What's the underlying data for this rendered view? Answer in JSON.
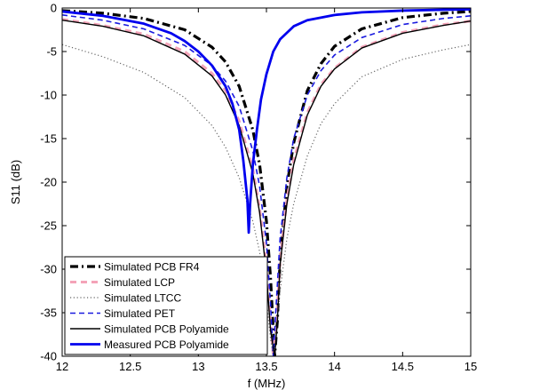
{
  "chart_data": {
    "type": "line",
    "xlabel": "f (MHz)",
    "ylabel": "S11 (dB)",
    "xlim": [
      12,
      15
    ],
    "ylim": [
      -40,
      0
    ],
    "x_ticks": [
      "12",
      "12.5",
      "13",
      "13.5",
      "14",
      "14.5",
      "15"
    ],
    "y_ticks": [
      "0",
      "-5",
      "-10",
      "-15",
      "-20",
      "-25",
      "-30",
      "-35",
      "-40"
    ],
    "grid": false,
    "legend_position": "bottom-left",
    "series": [
      {
        "name": "Simulated PCB FR4",
        "color": "#000000",
        "style": "dashdot-thick",
        "x": [
          12.0,
          12.3,
          12.6,
          12.9,
          13.1,
          13.2,
          13.3,
          13.4,
          13.45,
          13.5,
          13.53,
          13.56,
          13.58,
          13.6,
          13.65,
          13.7,
          13.8,
          13.9,
          14.0,
          14.2,
          14.5,
          14.8,
          15.0
        ],
        "y": [
          -0.3,
          -0.6,
          -1.2,
          -2.5,
          -4.5,
          -6.2,
          -9.0,
          -14.0,
          -18.0,
          -24.5,
          -31.0,
          -40.0,
          -36.0,
          -29.0,
          -20.5,
          -15.5,
          -9.5,
          -6.4,
          -4.4,
          -2.4,
          -1.1,
          -0.6,
          -0.4
        ]
      },
      {
        "name": "Simulated LCP",
        "color": "#f4a3b8",
        "style": "dashed-thick",
        "x": [
          12.0,
          12.3,
          12.6,
          12.9,
          13.1,
          13.2,
          13.3,
          13.4,
          13.45,
          13.5,
          13.53,
          13.55,
          13.57,
          13.6,
          13.65,
          13.7,
          13.8,
          13.9,
          14.0,
          14.2,
          14.5,
          14.8,
          15.0
        ],
        "y": [
          -1.3,
          -2.0,
          -3.0,
          -5.0,
          -7.5,
          -9.5,
          -13.0,
          -18.5,
          -23.0,
          -29.5,
          -36.0,
          -40.0,
          -37.0,
          -29.0,
          -22.0,
          -17.5,
          -12.0,
          -8.8,
          -6.9,
          -4.5,
          -2.8,
          -1.9,
          -1.5
        ]
      },
      {
        "name": "Simulated LTCC",
        "color": "#666666",
        "style": "dotted",
        "x": [
          12.0,
          12.3,
          12.6,
          12.9,
          13.1,
          13.2,
          13.3,
          13.4,
          13.45,
          13.5,
          13.53,
          13.55,
          13.57,
          13.6,
          13.65,
          13.7,
          13.8,
          13.9,
          14.0,
          14.2,
          14.5,
          14.8,
          15.0
        ],
        "y": [
          -4.2,
          -5.6,
          -7.4,
          -10.3,
          -13.5,
          -16.0,
          -19.5,
          -24.5,
          -28.0,
          -33.5,
          -38.0,
          -40.0,
          -38.0,
          -32.5,
          -26.5,
          -22.5,
          -17.0,
          -13.3,
          -11.0,
          -7.9,
          -5.9,
          -4.8,
          -4.2
        ]
      },
      {
        "name": "Simulated PET",
        "color": "#1a1adf",
        "style": "dashed",
        "x": [
          12.0,
          12.3,
          12.6,
          12.9,
          13.1,
          13.2,
          13.3,
          13.4,
          13.45,
          13.5,
          13.53,
          13.55,
          13.57,
          13.6,
          13.65,
          13.7,
          13.8,
          13.9,
          14.0,
          14.2,
          14.5,
          14.8,
          15.0
        ],
        "y": [
          -0.8,
          -1.4,
          -2.4,
          -4.3,
          -6.6,
          -8.4,
          -11.3,
          -16.4,
          -20.5,
          -27.0,
          -34.0,
          -40.0,
          -34.5,
          -26.5,
          -19.5,
          -15.0,
          -10.0,
          -7.2,
          -5.4,
          -3.4,
          -1.9,
          -1.2,
          -0.9
        ]
      },
      {
        "name": "Simulated PCB Polyamide",
        "color": "#000000",
        "style": "solid",
        "x": [
          12.0,
          12.3,
          12.6,
          12.9,
          13.1,
          13.2,
          13.3,
          13.4,
          13.45,
          13.5,
          13.53,
          13.56,
          13.58,
          13.6,
          13.65,
          13.7,
          13.8,
          13.9,
          14.0,
          14.2,
          14.5,
          14.8,
          15.0
        ],
        "y": [
          -1.4,
          -2.1,
          -3.2,
          -5.3,
          -7.8,
          -10.0,
          -13.5,
          -19.0,
          -23.5,
          -30.5,
          -37.0,
          -40.0,
          -36.0,
          -29.5,
          -22.5,
          -18.0,
          -12.3,
          -9.0,
          -7.0,
          -4.6,
          -2.9,
          -2.0,
          -1.5
        ]
      },
      {
        "name": "Measured PCB Polyamide",
        "color": "#0000ee",
        "style": "solid-thick",
        "x": [
          12.0,
          12.3,
          12.6,
          12.8,
          12.9,
          13.0,
          13.1,
          13.2,
          13.25,
          13.3,
          13.33,
          13.36,
          13.37,
          13.38,
          13.4,
          13.43,
          13.46,
          13.5,
          13.55,
          13.6,
          13.7,
          13.8,
          14.0,
          14.2,
          14.5,
          14.8,
          15.0
        ],
        "y": [
          -0.4,
          -0.9,
          -1.8,
          -2.9,
          -3.8,
          -5.0,
          -6.6,
          -9.0,
          -11.0,
          -14.0,
          -17.5,
          -22.0,
          -25.8,
          -22.5,
          -18.0,
          -14.0,
          -10.5,
          -7.6,
          -5.0,
          -3.6,
          -2.1,
          -1.4,
          -0.8,
          -0.5,
          -0.3,
          -0.2,
          -0.15
        ]
      }
    ]
  }
}
